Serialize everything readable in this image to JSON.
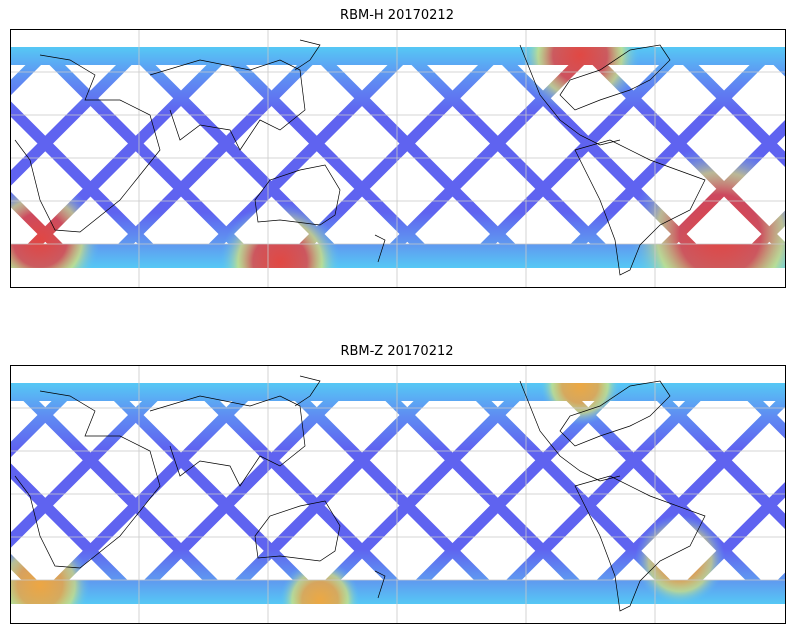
{
  "panels": [
    {
      "title": "RBM-H 20170212",
      "hot": "#e8423a",
      "warm": "#f7f05a",
      "base": "#5f63f0",
      "cool": "#56c8f5",
      "hot_regions": [
        [
          40,
          240,
          60
        ],
        [
          720,
          235,
          90
        ],
        [
          280,
          262,
          60
        ],
        [
          580,
          55,
          60
        ]
      ]
    },
    {
      "title": "RBM-Z 20170212",
      "hot": "#f4a63a",
      "warm": "#f0ee60",
      "base": "#5f63f0",
      "cool": "#56c8f5",
      "hot_regions": [
        [
          680,
          560,
          45
        ],
        [
          40,
          585,
          50
        ],
        [
          320,
          600,
          40
        ],
        [
          580,
          385,
          40
        ]
      ]
    }
  ],
  "colors": {
    "grid": "#c8c8c8",
    "coast": "#000000",
    "frame": "#000000"
  }
}
